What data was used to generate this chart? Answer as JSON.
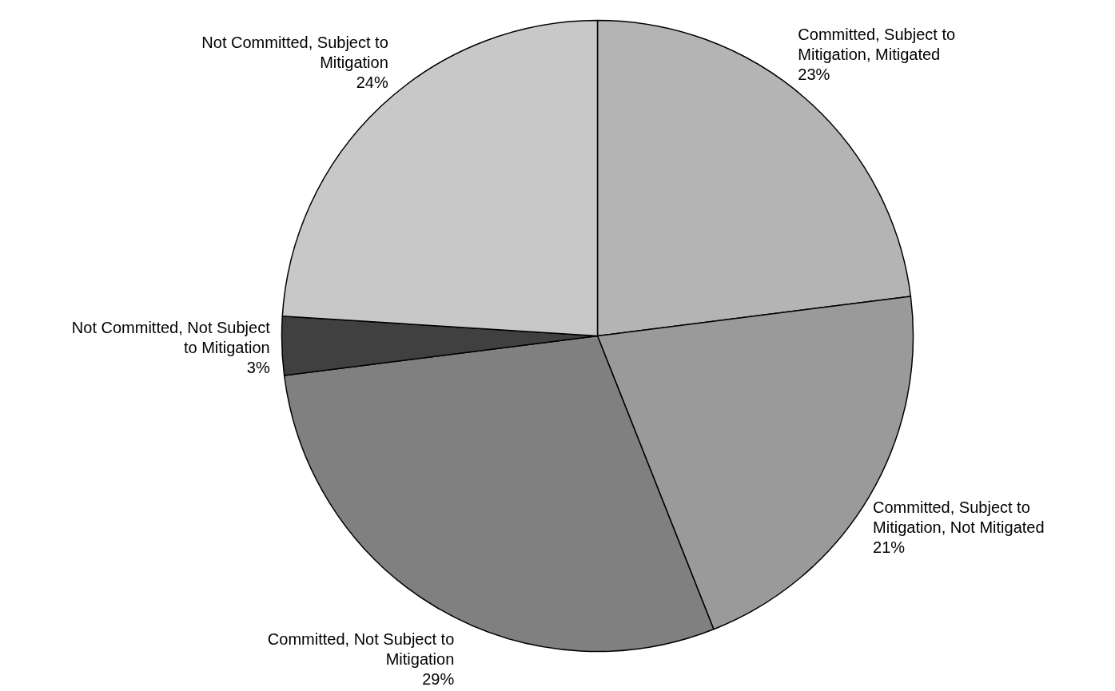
{
  "chart_data": {
    "type": "pie",
    "categories": [
      "Committed, Subject to Mitigation, Mitigated",
      "Committed, Subject to Mitigation, Not Mitigated",
      "Committed, Not Subject to Mitigation",
      "Not Committed, Not Subject to Mitigation",
      "Not Committed, Subject to Mitigation"
    ],
    "values": [
      23,
      21,
      29,
      3,
      24
    ],
    "value_labels": [
      "23%",
      "21%",
      "29%",
      "3%",
      "24%"
    ],
    "colors": [
      "#b4b4b4",
      "#9a9a9a",
      "#808080",
      "#404040",
      "#c8c8c8"
    ]
  }
}
